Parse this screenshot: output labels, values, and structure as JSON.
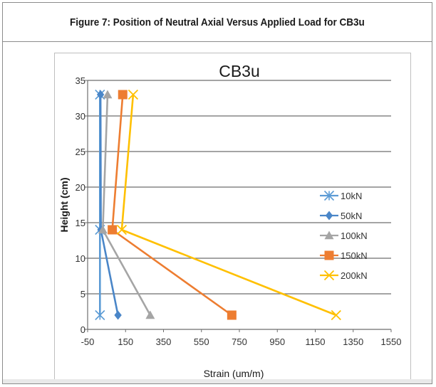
{
  "figure": {
    "caption": "Figure 7: Position of Neutral Axial Versus Applied Load for CB3u"
  },
  "chart_data": {
    "type": "line",
    "title": "CB3u",
    "xlabel": "Strain (um/m)",
    "ylabel": "Height (cm)",
    "xlim": [
      -50,
      1550
    ],
    "ylim": [
      0,
      35
    ],
    "x_ticks": [
      -50,
      150,
      350,
      550,
      750,
      950,
      1150,
      1350,
      1550
    ],
    "y_ticks": [
      0,
      5,
      10,
      15,
      20,
      25,
      30,
      35
    ],
    "grid": "horizontal",
    "legend_position": "right",
    "series": [
      {
        "name": "10kN",
        "color": "#5b9bd5",
        "marker": "asterisk",
        "points": [
          [
            15,
            33
          ],
          [
            15,
            14
          ],
          [
            15,
            2
          ]
        ]
      },
      {
        "name": "50kN",
        "color": "#4a86c8",
        "marker": "diamond",
        "points": [
          [
            18,
            33
          ],
          [
            20,
            14
          ],
          [
            110,
            2
          ]
        ]
      },
      {
        "name": "100kN",
        "color": "#a5a5a5",
        "marker": "triangle",
        "points": [
          [
            55,
            33
          ],
          [
            30,
            14
          ],
          [
            280,
            2
          ]
        ]
      },
      {
        "name": "150kN",
        "color": "#ed7d31",
        "marker": "square",
        "points": [
          [
            135,
            33
          ],
          [
            80,
            14
          ],
          [
            710,
            2
          ]
        ]
      },
      {
        "name": "200kN",
        "color": "#ffc000",
        "marker": "x",
        "points": [
          [
            190,
            33
          ],
          [
            130,
            14
          ],
          [
            1260,
            2
          ]
        ]
      }
    ]
  }
}
